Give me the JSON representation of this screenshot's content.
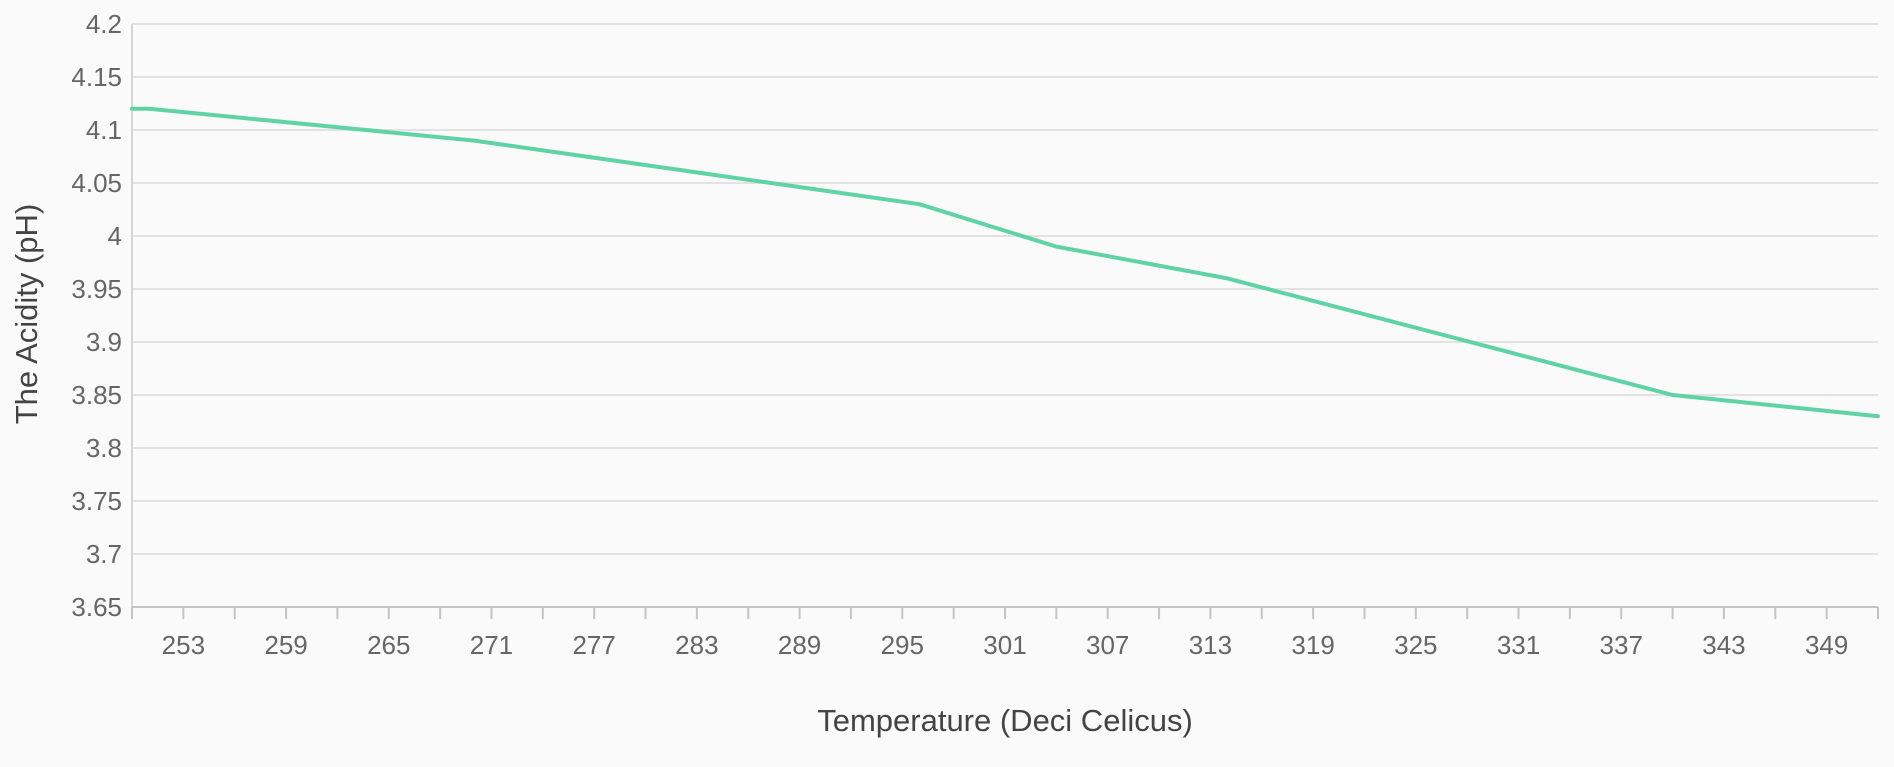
{
  "chart_data": {
    "type": "line",
    "xlabel": "Temperature (Deci Celicus)",
    "ylabel": "The Acidity (pH)",
    "xlim": [
      250,
      352
    ],
    "ylim": [
      3.65,
      4.2
    ],
    "x_ticks": [
      253,
      259,
      265,
      271,
      277,
      283,
      289,
      295,
      301,
      307,
      313,
      319,
      325,
      331,
      337,
      343,
      349
    ],
    "y_ticks": [
      3.65,
      3.7,
      3.75,
      3.8,
      3.85,
      3.9,
      3.95,
      4,
      4.05,
      4.1,
      4.15,
      4.2
    ],
    "grid": {
      "horizontal": true,
      "vertical": false
    },
    "series": [
      {
        "color": "#5fd3a5",
        "x": [
          250,
          251,
          270,
          296,
          304,
          314,
          340,
          352
        ],
        "y": [
          4.12,
          4.12,
          4.09,
          4.03,
          3.99,
          3.96,
          3.85,
          3.83
        ]
      }
    ]
  }
}
